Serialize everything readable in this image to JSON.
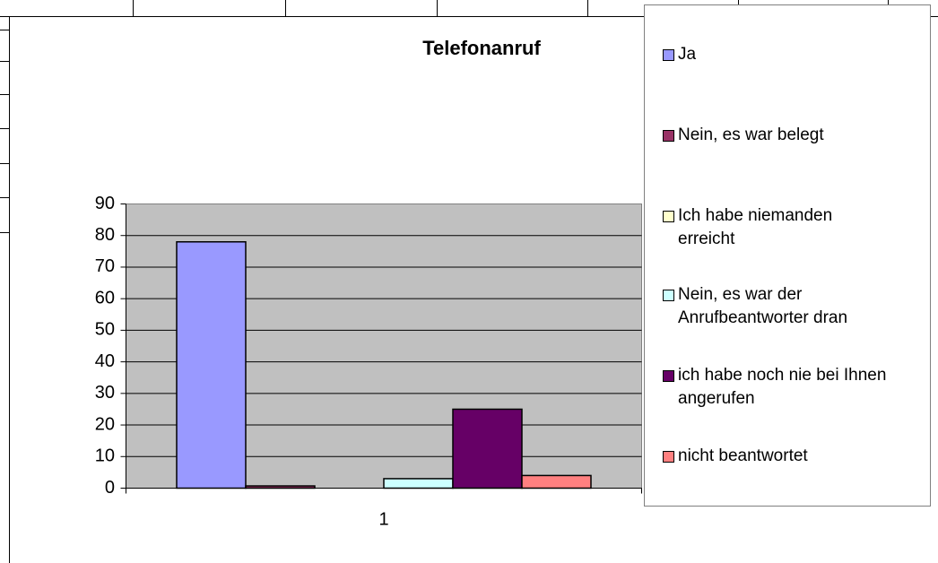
{
  "chart_data": {
    "type": "bar",
    "title": "Telefonanruf",
    "categories": [
      "1"
    ],
    "series": [
      {
        "name": "Ja",
        "color": "#9999ff",
        "values": [
          78
        ]
      },
      {
        "name": "Nein, es war belegt",
        "color": "#993366",
        "values": [
          0.7
        ]
      },
      {
        "name": "Ich habe niemanden erreicht",
        "color": "#ffffcc",
        "values": [
          0
        ]
      },
      {
        "name": "Nein, es war der Anrufbeantworter dran",
        "color": "#ccffff",
        "values": [
          3
        ]
      },
      {
        "name": "ich habe noch nie bei Ihnen angerufen",
        "color": "#660066",
        "values": [
          25
        ]
      },
      {
        "name": "nicht beantwortet",
        "color": "#ff8080",
        "values": [
          4
        ]
      }
    ],
    "ylim": [
      0,
      90
    ],
    "yticks": [
      0,
      10,
      20,
      30,
      40,
      50,
      60,
      70,
      80,
      90
    ],
    "grid": true,
    "legend": "right"
  }
}
